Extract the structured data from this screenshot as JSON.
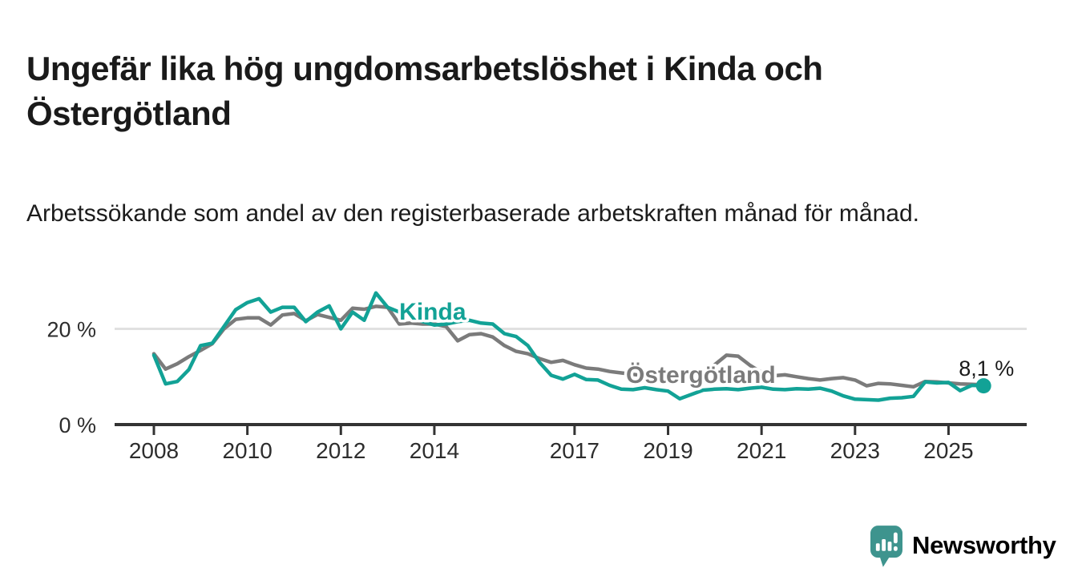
{
  "header": {
    "title": "Ungefär lika hög ungdomsarbetslöshet i Kinda och Östergötland",
    "subtitle": "Arbetssökande som andel av den registerbaserade arbetskraften månad för månad."
  },
  "chart_data": {
    "type": "line",
    "unit": "%",
    "x_range": [
      2008,
      2025.75
    ],
    "ylim": [
      0,
      30
    ],
    "grid": "single horizontal gridline at 20 %",
    "x_ticks": [
      2008,
      2010,
      2012,
      2014,
      2017,
      2019,
      2021,
      2023,
      2025
    ],
    "y_ticks": [
      {
        "value": 0,
        "label": "0 %"
      },
      {
        "value": 20,
        "label": "20 %"
      }
    ],
    "x": [
      2008,
      2008.25,
      2008.5,
      2008.75,
      2009,
      2009.25,
      2009.5,
      2009.75,
      2010,
      2010.25,
      2010.5,
      2010.75,
      2011,
      2011.25,
      2011.5,
      2011.75,
      2012,
      2012.25,
      2012.5,
      2012.75,
      2013,
      2013.25,
      2013.5,
      2013.75,
      2014,
      2014.25,
      2014.5,
      2014.75,
      2015,
      2015.25,
      2015.5,
      2015.75,
      2016,
      2016.25,
      2016.5,
      2016.75,
      2017,
      2017.25,
      2017.5,
      2017.75,
      2018,
      2018.25,
      2018.5,
      2018.75,
      2019,
      2019.25,
      2019.5,
      2019.75,
      2020,
      2020.25,
      2020.5,
      2020.75,
      2021,
      2021.25,
      2021.5,
      2021.75,
      2022,
      2022.25,
      2022.5,
      2022.75,
      2023,
      2023.25,
      2023.5,
      2023.75,
      2024,
      2024.25,
      2024.5,
      2024.75,
      2025,
      2025.25,
      2025.5,
      2025.75
    ],
    "series": [
      {
        "name": "Östergötland",
        "color": "#7b7b7b",
        "label_at": {
          "x": 2018.1,
          "y": 8.7
        },
        "values": [
          14.8,
          11.6,
          12.7,
          14.2,
          15.5,
          16.9,
          20,
          22,
          22.3,
          22.3,
          20.8,
          22.9,
          23.2,
          21.7,
          23,
          22.4,
          21.8,
          24.3,
          24.1,
          24.7,
          24.5,
          21,
          21.2,
          21,
          21,
          20.5,
          17.5,
          18.8,
          19,
          18.3,
          16.5,
          15.3,
          14.8,
          13.8,
          13,
          13.4,
          12.5,
          11.8,
          11.6,
          11.1,
          10.8,
          10.5,
          10.2,
          10,
          9.8,
          9.6,
          9.8,
          11,
          12.5,
          14.5,
          14.3,
          12.4,
          10.9,
          10.2,
          10.4,
          10,
          9.6,
          9.3,
          9.6,
          9.8,
          9.3,
          8.1,
          8.6,
          8.5,
          8.2,
          7.9,
          9,
          8.9,
          8.7,
          8.5,
          8.4,
          8.3
        ]
      },
      {
        "name": "Kinda",
        "color": "#12a296",
        "label_at": {
          "x": 2013.25,
          "y": 21.9
        },
        "end_dot": true,
        "values": [
          14.5,
          8.5,
          9,
          11.5,
          16.5,
          17,
          20.5,
          24,
          25.5,
          26.3,
          23.5,
          24.5,
          24.5,
          21.5,
          23.5,
          24.8,
          20,
          23.5,
          21.8,
          27.5,
          24.5,
          23.5,
          22.5,
          21.5,
          20.8,
          21,
          21.5,
          21.8,
          21.2,
          21,
          19,
          18.4,
          16.5,
          13,
          10.3,
          9.5,
          10.5,
          9.4,
          9.3,
          8.2,
          7.4,
          7.3,
          7.7,
          7.3,
          7,
          5.4,
          6.3,
          7.2,
          7.4,
          7.5,
          7.3,
          7.6,
          7.8,
          7.4,
          7.3,
          7.5,
          7.4,
          7.6,
          7,
          6,
          5.3,
          5.2,
          5.1,
          5.5,
          5.6,
          5.9,
          8.9,
          8.7,
          8.8,
          7.1,
          8.2,
          8.1
        ]
      }
    ],
    "annotations": [
      {
        "x": 2025.22,
        "y": 10.2,
        "text": "8,1 %"
      }
    ],
    "last_value_label": "8,1 %"
  },
  "style": {
    "accent_color": "#12a296",
    "comparison_color": "#7b7b7b",
    "gridline_color": "#e1e1e1",
    "axis_color": "#333333",
    "tick_label_color": "#2d2d2d"
  },
  "branding": {
    "logo_text": "Newsworthy",
    "logo_color": "#3e948e",
    "logo_icon": "speech-bubble-bar-chart-icon"
  }
}
